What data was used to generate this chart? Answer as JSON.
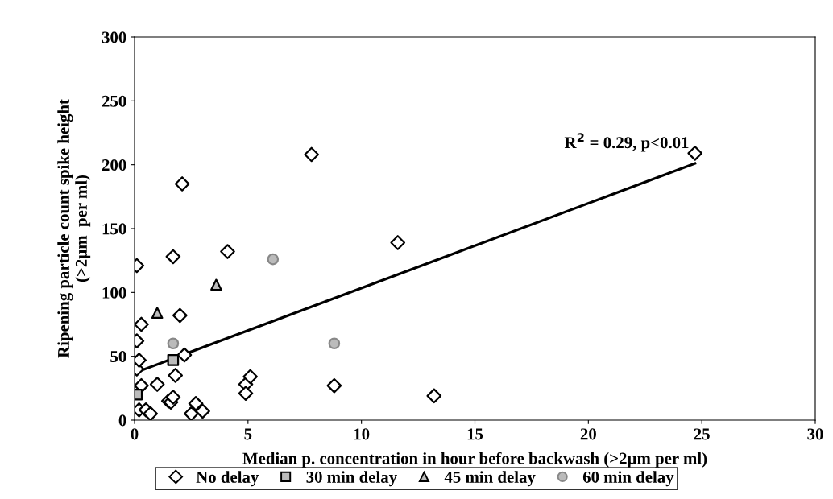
{
  "chart_data": {
    "type": "scatter",
    "xlabel": "Median p. concentration in hour before backwash (>2µm per ml)",
    "ylabel": "Ripening particle count spike height\n(>2µm  per ml)",
    "xlim": [
      0,
      30
    ],
    "xticks": [
      0,
      5,
      10,
      15,
      20,
      25,
      30
    ],
    "ylim": [
      0,
      300
    ],
    "yticks": [
      0,
      50,
      100,
      150,
      200,
      250,
      300
    ],
    "grid": false,
    "legend": "bottom",
    "annotations": [
      "R$^{2}$ = 0.29, p<0.01"
    ],
    "series": [
      {
        "name": "No delay",
        "color": "#000000",
        "marker": "diamond",
        "x": [
          0.1,
          0.1,
          0.1,
          0.2,
          0.3,
          0.3,
          0.2,
          0.5,
          0.7,
          1.0,
          1.5,
          1.6,
          1.7,
          1.8,
          1.7,
          2.0,
          2.1,
          2.2,
          2.5,
          2.7,
          3.0,
          4.1,
          4.9,
          4.9,
          5.1,
          7.8,
          8.8,
          11.6,
          13.2,
          24.7
        ],
        "values": [
          121,
          62,
          40,
          47,
          75,
          27,
          8,
          8,
          5,
          28,
          15,
          14,
          18,
          35,
          128,
          82,
          185,
          51,
          5,
          13,
          7,
          132,
          28,
          21,
          34,
          208,
          27,
          139,
          19,
          209
        ]
      },
      {
        "name": "30 min delay",
        "color": "#000000",
        "marker": "square",
        "x": [
          0.1,
          1.7
        ],
        "values": [
          20,
          47
        ]
      },
      {
        "name": "45 min delay",
        "color": "#000000",
        "marker": "triangle",
        "x": [
          1.0,
          3.6
        ],
        "values": [
          84,
          106
        ]
      },
      {
        "name": "60 min delay",
        "color": "#888888",
        "marker": "circle",
        "x": [
          1.7,
          6.1,
          8.8
        ],
        "values": [
          60,
          126,
          60
        ]
      },
      {
        "type": "line",
        "color": "#000000",
        "marker": "none",
        "x": [
          0,
          24.7
        ],
        "values": [
          37,
          201
        ]
      }
    ]
  }
}
